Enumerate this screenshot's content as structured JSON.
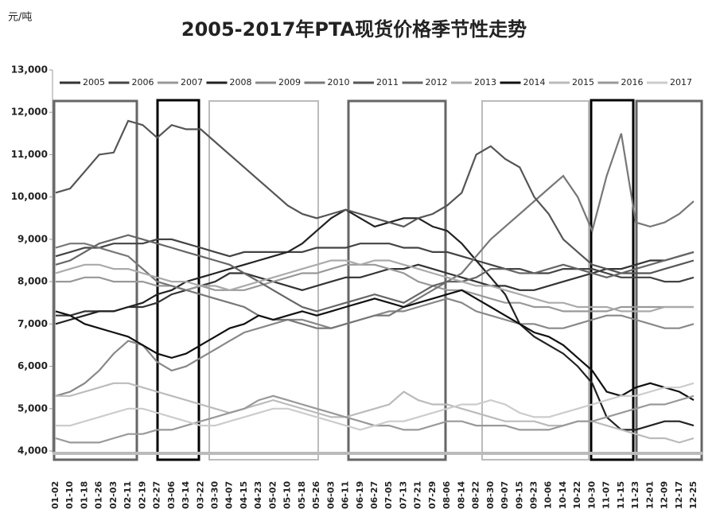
{
  "chart_data": {
    "type": "line",
    "title": "2005-2017年PTA现货价格季节性走势",
    "y_label": "元/吨",
    "categories": [
      "01-02",
      "01-10",
      "01-18",
      "01-26",
      "02-03",
      "02-11",
      "02-19",
      "02-27",
      "03-06",
      "03-14",
      "03-22",
      "03-30",
      "04-07",
      "04-15",
      "04-23",
      "05-02",
      "05-10",
      "05-18",
      "05-26",
      "06-03",
      "06-11",
      "06-19",
      "06-27",
      "07-05",
      "07-13",
      "07-21",
      "07-29",
      "08-06",
      "08-14",
      "08-22",
      "08-30",
      "09-07",
      "09-15",
      "09-23",
      "10-06",
      "10-14",
      "10-22",
      "10-30",
      "11-07",
      "11-15",
      "11-23",
      "12-01",
      "12-09",
      "12-17",
      "12-25"
    ],
    "ylim": [
      4000,
      13000
    ],
    "yticks": [
      {
        "value": 4000,
        "label": "4,000"
      },
      {
        "value": 5000,
        "label": "5,000"
      },
      {
        "value": 6000,
        "label": "6,000"
      },
      {
        "value": 7000,
        "label": "7,000"
      },
      {
        "value": 8000,
        "label": "8,000"
      },
      {
        "value": 9000,
        "label": "9,000"
      },
      {
        "value": 10000,
        "label": "10,000"
      },
      {
        "value": 11000,
        "label": "11,000"
      },
      {
        "value": 12000,
        "label": "12,000"
      },
      {
        "value": 13000,
        "label": "13,000"
      }
    ],
    "series": [
      {
        "name": "2005",
        "color": "#333333",
        "values": [
          7200,
          7200,
          7300,
          7300,
          7300,
          7400,
          7400,
          7500,
          7700,
          7800,
          7900,
          8000,
          8200,
          8200,
          8100,
          8000,
          7900,
          7800,
          7900,
          8000,
          8100,
          8100,
          8200,
          8300,
          8300,
          8400,
          8300,
          8200,
          8100,
          8000,
          7900,
          7900,
          7800,
          7800,
          7900,
          8000,
          8100,
          8200,
          8300,
          8300,
          8400,
          8500,
          8500,
          8600,
          8700
        ]
      },
      {
        "name": "2006",
        "color": "#444444",
        "values": [
          8600,
          8700,
          8800,
          8800,
          8900,
          8900,
          8900,
          9000,
          9000,
          8900,
          8800,
          8700,
          8600,
          8700,
          8700,
          8700,
          8700,
          8700,
          8800,
          8800,
          8800,
          8900,
          8900,
          8900,
          8800,
          8800,
          8700,
          8700,
          8600,
          8500,
          8400,
          8300,
          8300,
          8200,
          8200,
          8300,
          8300,
          8300,
          8200,
          8100,
          8100,
          8100,
          8000,
          8000,
          8100
        ]
      },
      {
        "name": "2007",
        "color": "#999999",
        "values": [
          8000,
          8000,
          8100,
          8100,
          8000,
          8000,
          8000,
          7900,
          7900,
          7800,
          7900,
          7800,
          7800,
          7800,
          7900,
          8000,
          8100,
          8200,
          8200,
          8300,
          8400,
          8400,
          8400,
          8300,
          8200,
          8000,
          7900,
          7800,
          7800,
          7700,
          7600,
          7500,
          7500,
          7400,
          7400,
          7300,
          7300,
          7300,
          7300,
          7400,
          7400,
          7400,
          7400,
          7400,
          7400
        ]
      },
      {
        "name": "2008",
        "color": "#222222",
        "values": [
          7000,
          7100,
          7200,
          7300,
          7300,
          7400,
          7500,
          7700,
          7800,
          8000,
          8100,
          8200,
          8300,
          8400,
          8500,
          8600,
          8700,
          8900,
          9200,
          9500,
          9700,
          9500,
          9300,
          9400,
          9500,
          9500,
          9300,
          9200,
          8900,
          8500,
          8100,
          7700,
          7000,
          6700,
          6500,
          6300,
          6000,
          5600,
          4800,
          4500,
          4500,
          4600,
          4700,
          4700,
          4600
        ]
      },
      {
        "name": "2009",
        "color": "#888888",
        "values": [
          5300,
          5400,
          5600,
          5900,
          6300,
          6600,
          6500,
          6100,
          5900,
          6000,
          6200,
          6400,
          6600,
          6800,
          6900,
          7000,
          7100,
          7100,
          7000,
          6900,
          7000,
          7100,
          7200,
          7300,
          7300,
          7400,
          7500,
          7600,
          7500,
          7300,
          7200,
          7100,
          7000,
          7000,
          6900,
          6900,
          7000,
          7100,
          7200,
          7200,
          7100,
          7000,
          6900,
          6900,
          7000
        ]
      },
      {
        "name": "2010",
        "color": "#777777",
        "values": [
          8800,
          8900,
          8900,
          8800,
          8700,
          8600,
          8300,
          8000,
          7900,
          7800,
          7700,
          7600,
          7500,
          7400,
          7200,
          7100,
          7100,
          7000,
          6900,
          6900,
          7000,
          7100,
          7200,
          7200,
          7400,
          7600,
          7800,
          8000,
          8200,
          8600,
          9000,
          9300,
          9600,
          9900,
          10200,
          10500,
          10000,
          9200,
          10500,
          11500,
          9400,
          9300,
          9400,
          9600,
          9900
        ]
      },
      {
        "name": "2011",
        "color": "#555555",
        "values": [
          10100,
          10200,
          10600,
          11000,
          11050,
          11800,
          11700,
          11400,
          11700,
          11600,
          11600,
          11300,
          11000,
          10700,
          10400,
          10100,
          9800,
          9600,
          9500,
          9600,
          9700,
          9600,
          9500,
          9400,
          9300,
          9500,
          9600,
          9800,
          10100,
          11000,
          11200,
          10900,
          10700,
          10000,
          9600,
          9000,
          8700,
          8400,
          8300,
          8200,
          8200,
          8200,
          8300,
          8400,
          8500
        ]
      },
      {
        "name": "2012",
        "color": "#666666",
        "values": [
          8400,
          8500,
          8700,
          8900,
          9000,
          9100,
          9000,
          8900,
          8800,
          8700,
          8600,
          8500,
          8400,
          8200,
          8000,
          7800,
          7600,
          7400,
          7300,
          7400,
          7500,
          7600,
          7700,
          7600,
          7500,
          7700,
          7900,
          8000,
          8000,
          8100,
          8300,
          8300,
          8200,
          8200,
          8300,
          8400,
          8300,
          8200,
          8100,
          8200,
          8300,
          8400,
          8500,
          8600,
          8700
        ]
      },
      {
        "name": "2013",
        "color": "#aaaaaa",
        "values": [
          8200,
          8300,
          8400,
          8400,
          8300,
          8300,
          8200,
          8100,
          8000,
          8000,
          7900,
          7900,
          7800,
          7900,
          8000,
          8100,
          8200,
          8300,
          8400,
          8500,
          8500,
          8400,
          8500,
          8500,
          8400,
          8300,
          8200,
          8100,
          8000,
          7900,
          7900,
          7800,
          7700,
          7600,
          7500,
          7500,
          7400,
          7400,
          7400,
          7300,
          7300,
          7300,
          7400,
          7400,
          7400
        ]
      },
      {
        "name": "2014",
        "color": "#111111",
        "values": [
          7300,
          7200,
          7000,
          6900,
          6800,
          6700,
          6500,
          6300,
          6200,
          6300,
          6500,
          6700,
          6900,
          7000,
          7200,
          7100,
          7200,
          7300,
          7200,
          7300,
          7400,
          7500,
          7600,
          7500,
          7400,
          7500,
          7600,
          7700,
          7800,
          7600,
          7400,
          7200,
          7000,
          6800,
          6700,
          6500,
          6200,
          5900,
          5400,
          5300,
          5500,
          5600,
          5500,
          5400,
          5200
        ]
      },
      {
        "name": "2015",
        "color": "#bbbbbb",
        "values": [
          5300,
          5300,
          5400,
          5500,
          5600,
          5600,
          5500,
          5400,
          5300,
          5200,
          5100,
          5000,
          4900,
          5000,
          5100,
          5200,
          5100,
          5000,
          4900,
          4800,
          4800,
          4900,
          5000,
          5100,
          5400,
          5200,
          5100,
          5100,
          5000,
          4900,
          4800,
          4700,
          4700,
          4700,
          4600,
          4600,
          4700,
          4700,
          4600,
          4500,
          4400,
          4300,
          4300,
          4200,
          4300
        ]
      },
      {
        "name": "2016",
        "color": "#999999",
        "values": [
          4300,
          4200,
          4200,
          4200,
          4300,
          4400,
          4400,
          4500,
          4500,
          4600,
          4700,
          4800,
          4900,
          5000,
          5200,
          5300,
          5200,
          5100,
          5000,
          4900,
          4800,
          4700,
          4600,
          4600,
          4500,
          4500,
          4600,
          4700,
          4700,
          4600,
          4600,
          4600,
          4500,
          4500,
          4500,
          4600,
          4700,
          4700,
          4800,
          4900,
          5000,
          5100,
          5100,
          5200,
          5300
        ]
      },
      {
        "name": "2017",
        "color": "#cccccc",
        "values": [
          4600,
          4600,
          4700,
          4800,
          4900,
          5000,
          5000,
          4900,
          4800,
          4700,
          4600,
          4600,
          4700,
          4800,
          4900,
          5000,
          5000,
          4900,
          4800,
          4700,
          4600,
          4500,
          4600,
          4700,
          4700,
          4800,
          4900,
          5000,
          5100,
          5100,
          5200,
          5100,
          4900,
          4800,
          4800,
          4900,
          5000,
          5100,
          5200,
          5300,
          5300,
          5400,
          5500,
          5500,
          5600
        ]
      }
    ]
  }
}
